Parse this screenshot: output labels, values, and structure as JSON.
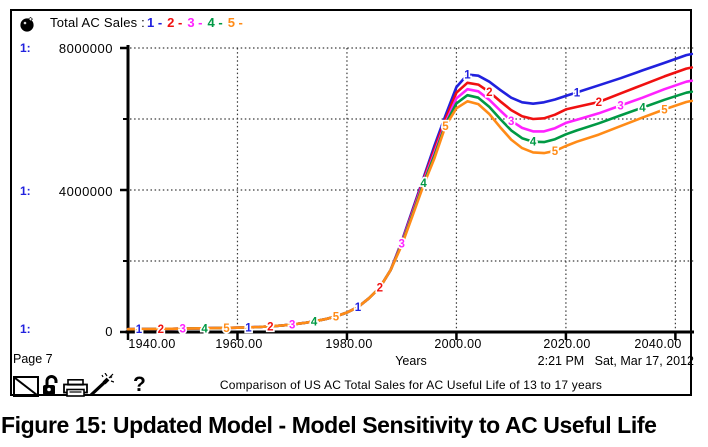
{
  "legend": {
    "title": "Total AC Sales :",
    "runs": [
      {
        "label": "1 -"
      },
      {
        "label": "2 -"
      },
      {
        "label": "3 -"
      },
      {
        "label": "4 -"
      },
      {
        "label": "5 -"
      }
    ]
  },
  "y_axis": {
    "scale_prefix": "1:",
    "scale_color": "#2121de",
    "labels": [
      "8000000",
      "4000000",
      "0"
    ]
  },
  "x_axis": {
    "labels": [
      "1940.00",
      "1960.00",
      "1980.00",
      "2000.00",
      "2020.00",
      "2040.00"
    ],
    "title": "Years"
  },
  "footer": {
    "page_label": "Page 7",
    "timestamp": "2:21 PM   Sat, Mar 17, 2012",
    "comparison": "Comparison of US AC Total Sales for AC Useful Life of 13 to 17 years",
    "help_label": "?"
  },
  "caption": "Figure 15: Updated Model - Model Sensitivity to AC Useful Life",
  "chart_data": {
    "type": "line",
    "title": "Total AC Sales",
    "xlabel": "Years",
    "ylabel": "",
    "x_range": [
      1940,
      2043
    ],
    "y_range": [
      0,
      8000000
    ],
    "x_ticks": [
      1940,
      1960,
      1980,
      2000,
      2020,
      2040
    ],
    "y_ticks": [
      0,
      4000000,
      8000000
    ],
    "y_minor_ticks": [
      2000000,
      6000000
    ],
    "grid": "dotted",
    "legend_position": "top",
    "x": [
      1940,
      1944,
      1948,
      1952,
      1956,
      1960,
      1964,
      1968,
      1970,
      1972,
      1974,
      1976,
      1978,
      1980,
      1982,
      1984,
      1986,
      1988,
      1990,
      1992,
      1994,
      1996,
      1998,
      2000,
      2002,
      2004,
      2006,
      2008,
      2010,
      2012,
      2014,
      2016,
      2018,
      2020,
      2022,
      2026,
      2030,
      2034,
      2038,
      2042,
      2043
    ],
    "series": [
      {
        "name": "1",
        "color": "#2121de",
        "values": [
          80000,
          85000,
          90000,
          100000,
          110000,
          120000,
          140000,
          180000,
          210000,
          250000,
          300000,
          360000,
          440000,
          550000,
          700000,
          950000,
          1250000,
          1750000,
          2550000,
          3450000,
          4350000,
          5250000,
          6100000,
          6900000,
          7250000,
          7220000,
          7050000,
          6820000,
          6600000,
          6470000,
          6430000,
          6470000,
          6550000,
          6650000,
          6750000,
          6950000,
          7150000,
          7370000,
          7580000,
          7800000,
          7830000
        ]
      },
      {
        "name": "2",
        "color": "#f01010",
        "values": [
          80000,
          85000,
          90000,
          100000,
          110000,
          120000,
          140000,
          180000,
          210000,
          250000,
          300000,
          360000,
          440000,
          550000,
          700000,
          950000,
          1250000,
          1750000,
          2520000,
          3400000,
          4300000,
          5150000,
          6000000,
          6740000,
          7020000,
          6970000,
          6760000,
          6500000,
          6250000,
          6080000,
          6000000,
          6020000,
          6120000,
          6270000,
          6340000,
          6480000,
          6720000,
          6960000,
          7200000,
          7420000,
          7450000
        ]
      },
      {
        "name": "3",
        "color": "#ff22ff",
        "values": [
          80000,
          85000,
          90000,
          100000,
          110000,
          120000,
          140000,
          180000,
          210000,
          250000,
          300000,
          360000,
          440000,
          550000,
          700000,
          950000,
          1250000,
          1750000,
          2500000,
          3360000,
          4250000,
          5060000,
          5900000,
          6580000,
          6840000,
          6780000,
          6540000,
          6240000,
          5950000,
          5750000,
          5650000,
          5650000,
          5740000,
          5890000,
          5980000,
          6160000,
          6380000,
          6600000,
          6840000,
          7050000,
          7080000
        ]
      },
      {
        "name": "4",
        "color": "#009944",
        "values": [
          80000,
          85000,
          90000,
          100000,
          110000,
          120000,
          140000,
          180000,
          210000,
          250000,
          300000,
          360000,
          440000,
          550000,
          700000,
          950000,
          1250000,
          1750000,
          2470000,
          3320000,
          4200000,
          4980000,
          5850000,
          6440000,
          6670000,
          6600000,
          6340000,
          6000000,
          5680000,
          5460000,
          5360000,
          5350000,
          5430000,
          5570000,
          5680000,
          5880000,
          6100000,
          6320000,
          6540000,
          6740000,
          6770000
        ]
      },
      {
        "name": "5",
        "color": "#ff8b17",
        "values": [
          80000,
          85000,
          90000,
          100000,
          110000,
          120000,
          140000,
          180000,
          210000,
          250000,
          300000,
          360000,
          440000,
          550000,
          700000,
          950000,
          1250000,
          1750000,
          2440000,
          3280000,
          4140000,
          4900000,
          5800000,
          6300000,
          6500000,
          6420000,
          6140000,
          5770000,
          5420000,
          5180000,
          5060000,
          5040000,
          5100000,
          5240000,
          5360000,
          5560000,
          5800000,
          6040000,
          6270000,
          6480000,
          6510000
        ]
      }
    ],
    "curve_labels": {
      "start_year": 1942,
      "step_years": 4,
      "end_year": 2038
    }
  }
}
